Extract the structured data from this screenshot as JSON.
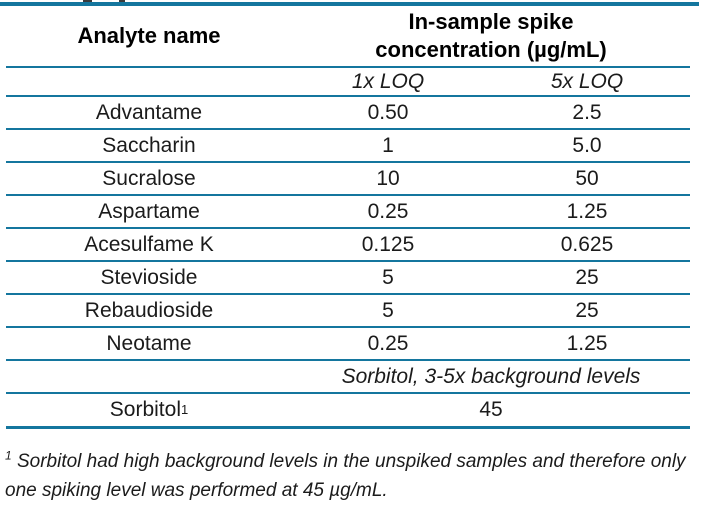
{
  "page": {
    "background": "#ffffff",
    "accent_line_color": "#14769E",
    "text_color": "#1b1b1b"
  },
  "table": {
    "header": {
      "col1": "Analyte name",
      "col23_line1": "In-sample spike",
      "col23_line2": "concentration (µg/mL)"
    },
    "subheader": {
      "col2": "1x LOQ",
      "col3": "5x LOQ"
    },
    "rows": [
      {
        "name": "Advantame",
        "loq1": "0.50",
        "loq5": "2.5"
      },
      {
        "name": "Saccharin",
        "loq1": "1",
        "loq5": "5.0"
      },
      {
        "name": "Sucralose",
        "loq1": "10",
        "loq5": "50"
      },
      {
        "name": "Aspartame",
        "loq1": "0.25",
        "loq5": "1.25"
      },
      {
        "name": "Acesulfame K",
        "loq1": "0.125",
        "loq5": "0.625"
      },
      {
        "name": "Stevioside",
        "loq1": "5",
        "loq5": "25"
      },
      {
        "name": "Rebaudioside",
        "loq1": "5",
        "loq5": "25"
      },
      {
        "name": "Neotame",
        "loq1": "0.25",
        "loq5": "1.25"
      }
    ],
    "sorbitol_note_row": {
      "text": "Sorbitol, 3-5x background levels"
    },
    "sorbitol_row": {
      "name": "Sorbitol",
      "sup": "1",
      "value": "45"
    }
  },
  "footnote": {
    "marker": "1",
    "line1": " Sorbitol had high background levels in the unspiked samples and therefore only",
    "line2": "one spiking level was performed at 45 µg/mL."
  }
}
